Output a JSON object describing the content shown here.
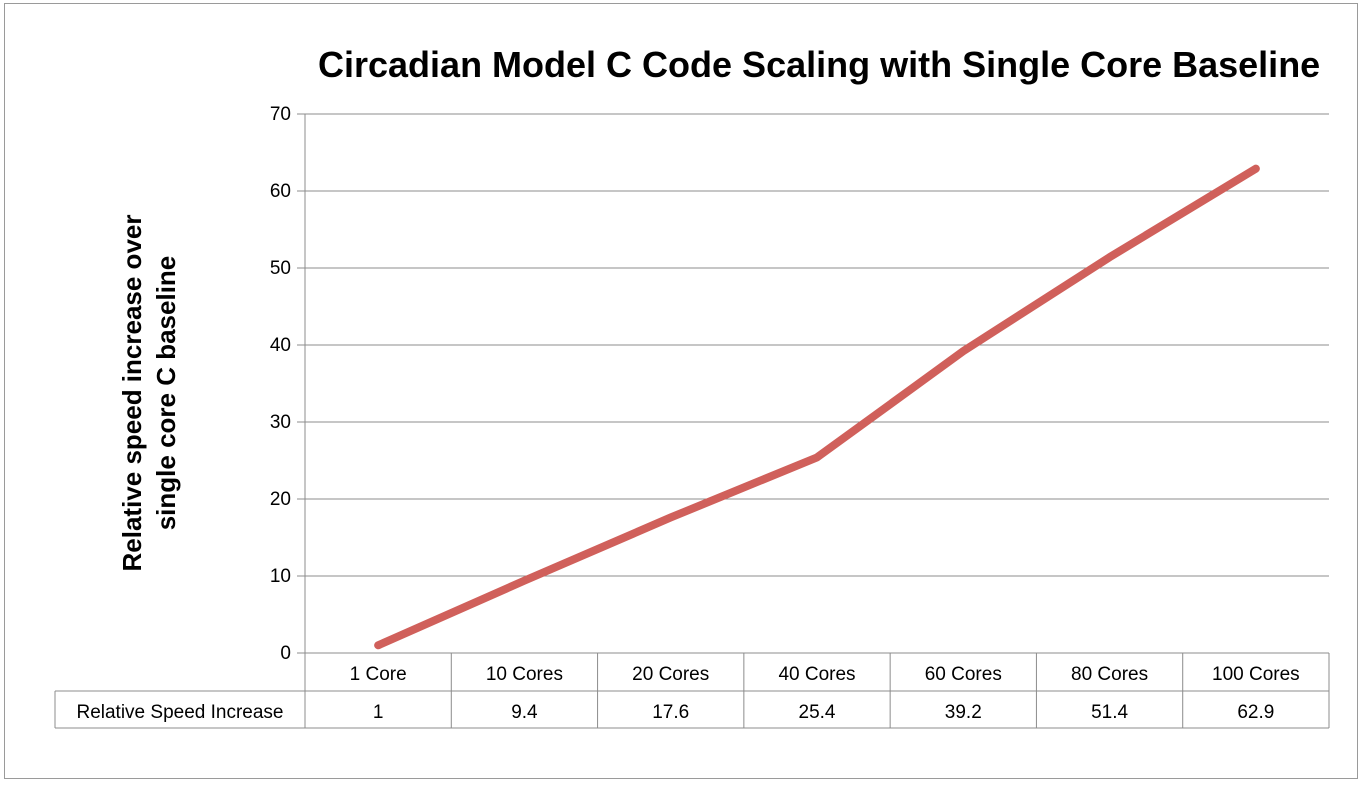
{
  "chart_data": {
    "type": "line",
    "title": "Circadian Model C Code Scaling with Single Core Baseline",
    "ylabel_line1": "Relative speed increase over",
    "ylabel_line2": "single core C baseline",
    "xlabel": "",
    "categories": [
      "1 Core",
      "10 Cores",
      "20 Cores",
      "40 Cores",
      "60 Cores",
      "80 Cores",
      "100 Cores"
    ],
    "series": [
      {
        "name": "Relative Speed Increase",
        "values": [
          1,
          9.4,
          17.6,
          25.4,
          39.2,
          51.4,
          62.9
        ],
        "color": "#d0605b"
      }
    ],
    "table_values": [
      "1",
      "9.4",
      "17.6",
      "25.4",
      "39.2",
      "51.4",
      "62.9"
    ],
    "yticks": [
      "0",
      "10",
      "20",
      "30",
      "40",
      "50",
      "60",
      "70"
    ],
    "ylim": [
      0,
      70
    ],
    "grid": true,
    "legend": "data-table"
  }
}
